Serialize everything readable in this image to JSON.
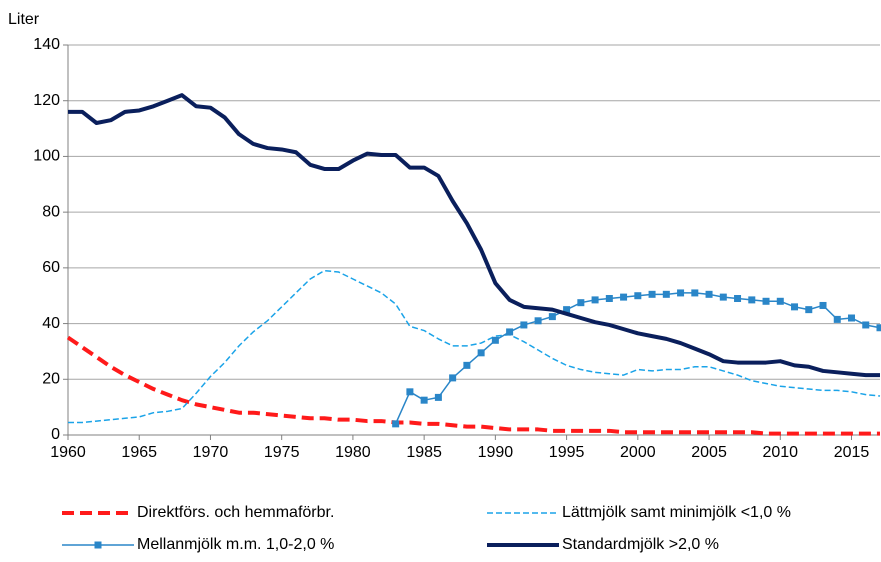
{
  "chart_data": {
    "type": "line",
    "y_label": "Liter",
    "x": [
      1960,
      1961,
      1962,
      1963,
      1964,
      1965,
      1966,
      1967,
      1968,
      1969,
      1970,
      1971,
      1972,
      1973,
      1974,
      1975,
      1976,
      1977,
      1978,
      1979,
      1980,
      1981,
      1982,
      1983,
      1984,
      1985,
      1986,
      1987,
      1988,
      1989,
      1990,
      1991,
      1992,
      1993,
      1994,
      1995,
      1996,
      1997,
      1998,
      1999,
      2000,
      2001,
      2002,
      2003,
      2004,
      2005,
      2006,
      2007,
      2008,
      2009,
      2010,
      2011,
      2012,
      2013,
      2014,
      2015,
      2016,
      2017
    ],
    "series": [
      {
        "name": "Direktförs. och hemmaförbr.",
        "color": "#ff1a1a",
        "linestyle": "dashed",
        "linewidth": 4,
        "values": [
          35,
          31.5,
          28,
          24.5,
          21.5,
          19,
          16.5,
          14.5,
          12.5,
          11,
          10,
          9,
          8,
          8,
          7.5,
          7,
          6.5,
          6,
          6,
          5.5,
          5.5,
          5,
          5,
          4.5,
          4.5,
          4,
          4,
          3.5,
          3,
          3,
          2.5,
          2,
          2,
          2,
          1.5,
          1.5,
          1.5,
          1.5,
          1.5,
          1,
          1,
          1,
          1,
          1,
          1,
          1,
          1,
          1,
          1,
          0.5,
          0.5,
          0.5,
          0.5,
          0.5,
          0.5,
          0.5,
          0.5,
          0.5
        ]
      },
      {
        "name": "Lättmjölk samt minimjölk <1,0 %",
        "color": "#1aa3e8",
        "linestyle": "dashed",
        "linewidth": 1.5,
        "values": [
          4.5,
          4.5,
          5,
          5.5,
          6,
          6.5,
          8,
          8.5,
          9.5,
          15,
          21,
          26,
          32,
          37,
          41,
          46,
          51,
          56,
          59,
          58.5,
          56,
          53.5,
          51,
          47,
          39,
          37.5,
          34.5,
          32,
          32,
          33,
          35.5,
          36,
          33.5,
          30.5,
          27.5,
          25,
          23.5,
          22.5,
          22,
          21.5,
          23.5,
          23,
          23.5,
          23.5,
          24.5,
          24.5,
          23,
          21.5,
          19.5,
          18.5,
          17.5,
          17,
          16.5,
          16,
          16,
          15.5,
          14.5,
          14
        ]
      },
      {
        "name": "Mellanmjölk m.m. 1,0-2,0 %",
        "color": "#2a86c8",
        "linestyle": "solid",
        "linewidth": 1.5,
        "marker": "square",
        "values": [
          null,
          null,
          null,
          null,
          null,
          null,
          null,
          null,
          null,
          null,
          null,
          null,
          null,
          null,
          null,
          null,
          null,
          null,
          null,
          null,
          null,
          null,
          null,
          4,
          15.5,
          12.5,
          13.5,
          20.5,
          25,
          29.5,
          34,
          37,
          39.5,
          41,
          42.5,
          45,
          47.5,
          48.5,
          49,
          49.5,
          50,
          50.5,
          50.5,
          51,
          51,
          50.5,
          49.5,
          49,
          48.5,
          48,
          48,
          46,
          45,
          46.5,
          41.5,
          42,
          39.5,
          38.5
        ]
      },
      {
        "name": "Standardmjölk >2,0 %",
        "color": "#0a1f5c",
        "linestyle": "solid",
        "linewidth": 4,
        "values": [
          116,
          116,
          112,
          113,
          116,
          116.5,
          118,
          120,
          122,
          118,
          117.5,
          114,
          108,
          104.5,
          103,
          102.5,
          101.5,
          97,
          95.5,
          95.5,
          98.5,
          101,
          100.5,
          100.5,
          96,
          96,
          93,
          84,
          76,
          66.5,
          54.5,
          48.5,
          46,
          45.5,
          45,
          43.5,
          42,
          40.5,
          39.5,
          38,
          36.5,
          35.5,
          34.5,
          33,
          31,
          29,
          26.5,
          26,
          26,
          26,
          26.5,
          25,
          24.5,
          23,
          22.5,
          22,
          21.5,
          21.5
        ]
      }
    ],
    "xlim": [
      1960,
      2017
    ],
    "xticks": [
      1960,
      1965,
      1970,
      1975,
      1980,
      1985,
      1990,
      1995,
      2000,
      2005,
      2010,
      2015
    ],
    "ylim": [
      0,
      140
    ],
    "yticks": [
      0,
      20,
      40,
      60,
      80,
      100,
      120,
      140
    ],
    "grid": true
  }
}
